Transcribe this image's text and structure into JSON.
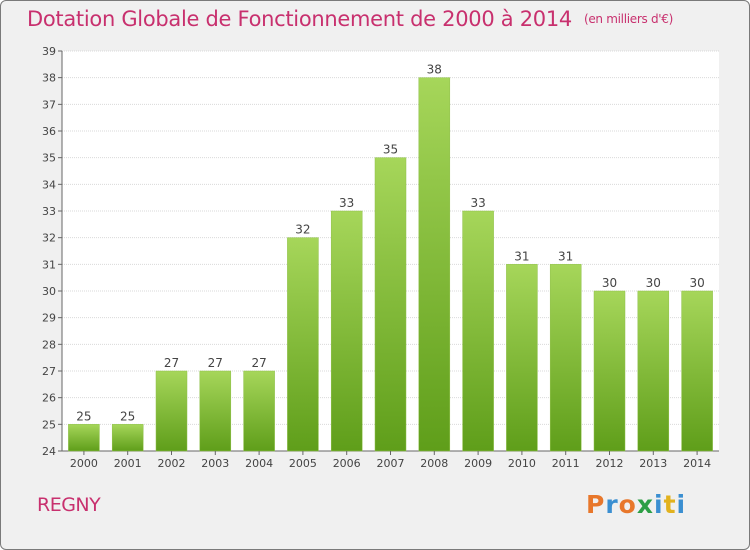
{
  "header": {
    "title": "Dotation Globale de Fonctionnement de 2000 à 2014",
    "subtitle": "(en milliers d'€)"
  },
  "footer": {
    "place": "REGNY",
    "logo": "Proxiti"
  },
  "colors": {
    "title": "#c8306e",
    "bar_top": "#a6d65a",
    "bar_bottom": "#5f9e1a",
    "plot_bg": "#ffffff",
    "grid": "#d9d9d9"
  },
  "chart_data": {
    "type": "bar",
    "title": "Dotation Globale de Fonctionnement de 2000 à 2014",
    "subtitle": "(en milliers d'€)",
    "xlabel": "",
    "ylabel": "",
    "categories": [
      "2000",
      "2001",
      "2002",
      "2003",
      "2004",
      "2005",
      "2006",
      "2007",
      "2008",
      "2009",
      "2010",
      "2011",
      "2012",
      "2013",
      "2014"
    ],
    "values": [
      25,
      25,
      27,
      27,
      27,
      32,
      33,
      35,
      38,
      33,
      31,
      31,
      30,
      30,
      30
    ],
    "ylim": [
      24,
      39
    ],
    "yticks": [
      24,
      25,
      26,
      27,
      28,
      29,
      30,
      31,
      32,
      33,
      34,
      35,
      36,
      37,
      38,
      39
    ],
    "grid": true,
    "data_labels": true,
    "legend": "none"
  }
}
